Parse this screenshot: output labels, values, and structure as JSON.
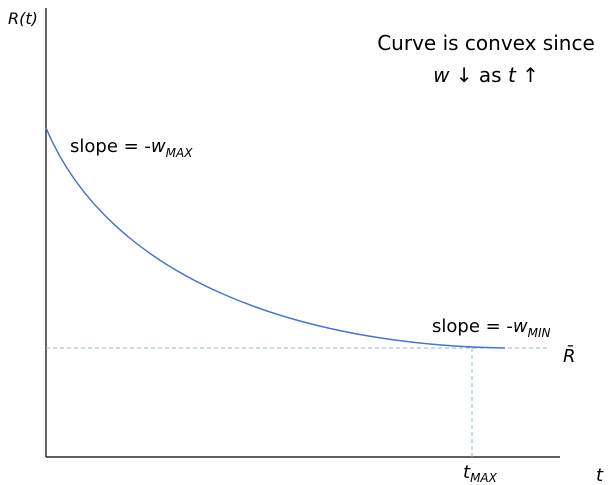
{
  "y_axis_label": "R(t)",
  "x_axis_label": "t",
  "caption": {
    "line1": "Curve is convex since",
    "line2": {
      "w": "w",
      "mid": " ↓ as ",
      "t": "t",
      "end": " ↑"
    }
  },
  "slope_max": {
    "prefix": "slope = -",
    "symbol": "w",
    "subscript": "MAX"
  },
  "slope_min": {
    "prefix": "slope = -",
    "symbol": "w",
    "subscript": "MIN"
  },
  "r_bar": "R̄",
  "t_max": {
    "symbol": "t",
    "subscript": "MAX"
  }
}
